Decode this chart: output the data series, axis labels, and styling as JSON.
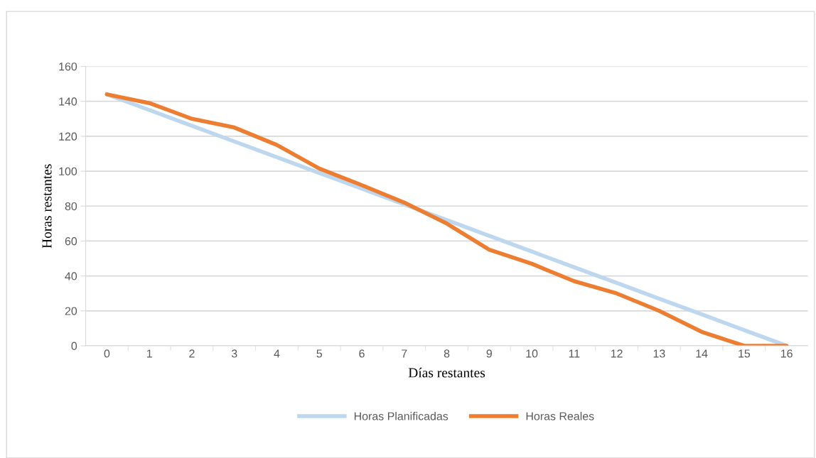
{
  "chart_data": {
    "type": "line",
    "xlabel": "Días restantes",
    "ylabel": "Horas restantes",
    "categories": [
      "0",
      "1",
      "2",
      "3",
      "4",
      "5",
      "6",
      "7",
      "8",
      "9",
      "10",
      "11",
      "12",
      "13",
      "14",
      "15",
      "16"
    ],
    "series": [
      {
        "name": "Horas Planificadas",
        "color": "#bdd7ee",
        "values": [
          144,
          135,
          126,
          117,
          108,
          99,
          90,
          81,
          72,
          63,
          54,
          45,
          36,
          27,
          18,
          9,
          0
        ]
      },
      {
        "name": "Horas Reales",
        "color": "#ed7d31",
        "values": [
          144,
          139,
          130,
          125,
          115,
          101.5,
          92,
          82,
          70,
          55,
          47,
          37,
          30,
          20,
          8,
          0,
          0
        ]
      }
    ],
    "ylim": [
      0,
      160
    ],
    "yticks": [
      0,
      20,
      40,
      60,
      80,
      100,
      120,
      140,
      160
    ],
    "grid": "y",
    "legend": "bottom",
    "marker": "none",
    "line_style": "solid"
  }
}
